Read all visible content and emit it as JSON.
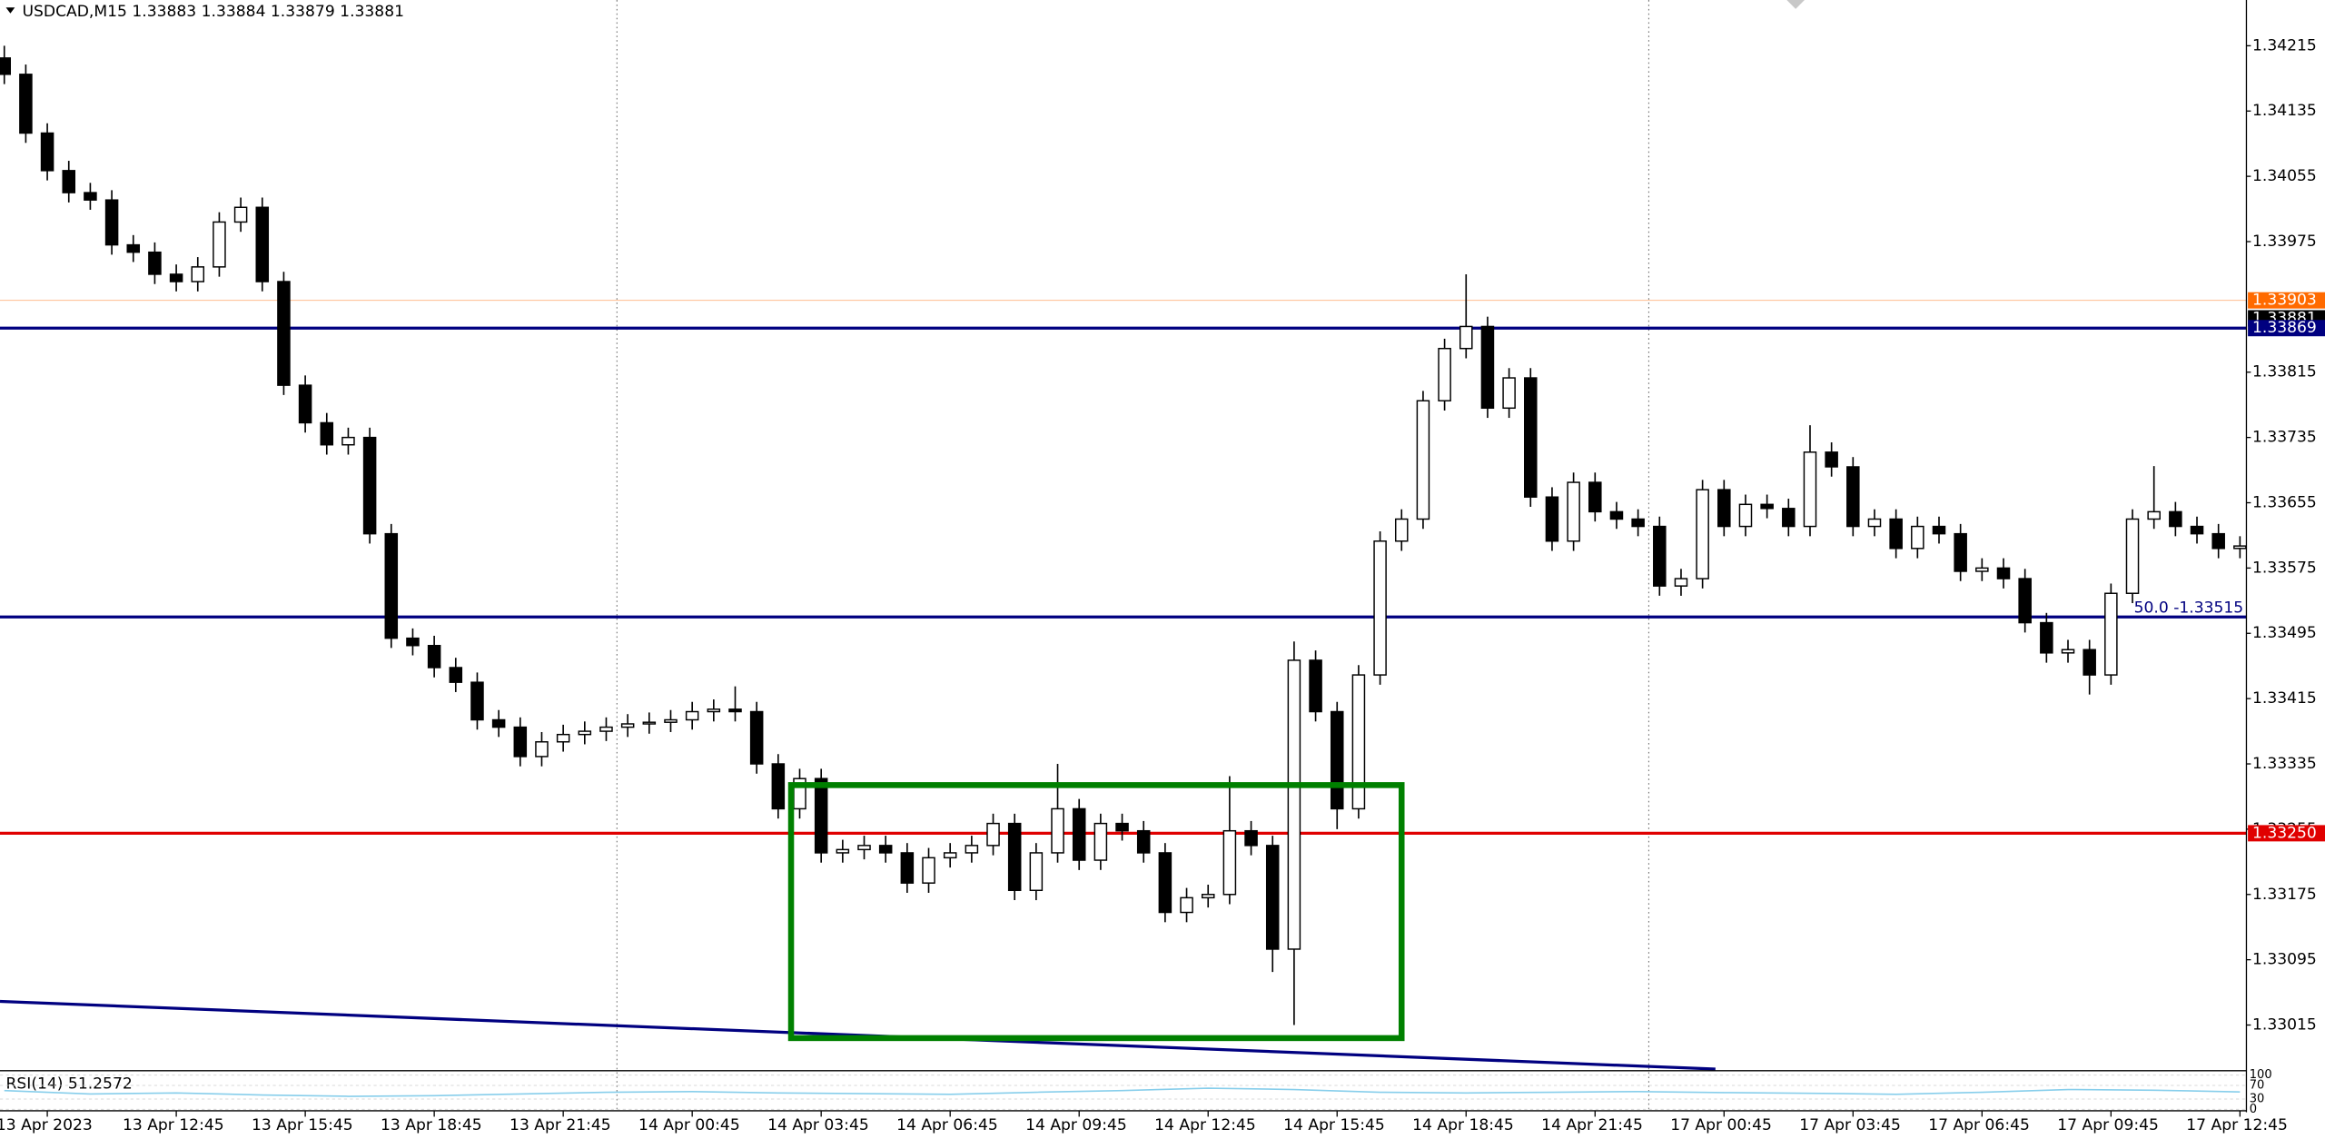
{
  "chart_data": {
    "type": "candlestick",
    "header": "USDCAD,M15  1.33883 1.33884 1.33879 1.33881",
    "up_color": "#ffffff",
    "down_color": "#000000",
    "edge_color": "#000000",
    "open": [
      1.342,
      1.3418,
      1.34108,
      1.34062,
      1.34035,
      1.34026,
      1.33971,
      1.33962,
      1.33935,
      1.33926,
      1.33944,
      1.33999,
      1.34017,
      1.33926,
      1.33799,
      1.33753,
      1.33726,
      1.33735,
      1.33617,
      1.33489,
      1.3348,
      1.33453,
      1.33435,
      1.33389,
      1.3338,
      1.33344,
      1.33362,
      1.33371,
      1.33375,
      1.3338,
      1.33384,
      1.33386,
      1.33389,
      1.33399,
      1.33402,
      1.33399,
      1.33335,
      1.3328,
      1.33317,
      1.33226,
      1.3323,
      1.33235,
      1.33226,
      1.33189,
      1.3322,
      1.33226,
      1.33235,
      1.33262,
      1.3318,
      1.33226,
      1.3328,
      1.33217,
      1.33262,
      1.33253,
      1.33226,
      1.33153,
      1.33171,
      1.33175,
      1.33253,
      1.33235,
      1.33108,
      1.33462,
      1.33399,
      1.3328,
      1.33444,
      1.33608,
      1.33635,
      1.3378,
      1.33844,
      1.33871,
      1.33771,
      1.33808,
      1.33662,
      1.33608,
      1.3368,
      1.33644,
      1.33635,
      1.33626,
      1.33553,
      1.33562,
      1.33671,
      1.33626,
      1.33653,
      1.33648,
      1.33626,
      1.33717,
      1.33699,
      1.33626,
      1.33635,
      1.33599,
      1.33626,
      1.33617,
      1.33571,
      1.33575,
      1.33562,
      1.33508,
      1.33471,
      1.33475,
      1.33444,
      1.33544,
      1.33635,
      1.33644,
      1.33626,
      1.33617,
      1.33599
    ],
    "high": [
      1.34215,
      1.34192,
      1.3412,
      1.34074,
      1.34047,
      1.34038,
      1.33983,
      1.33974,
      1.33947,
      1.33956,
      1.34011,
      1.34029,
      1.34029,
      1.33938,
      1.33811,
      1.33765,
      1.33747,
      1.33747,
      1.33629,
      1.33501,
      1.33492,
      1.33465,
      1.33447,
      1.33401,
      1.33392,
      1.33374,
      1.33383,
      1.33387,
      1.33392,
      1.33396,
      1.33398,
      1.33401,
      1.33411,
      1.33414,
      1.3343,
      1.33411,
      1.33347,
      1.33329,
      1.33329,
      1.33242,
      1.33247,
      1.33247,
      1.33238,
      1.33232,
      1.33238,
      1.33247,
      1.33274,
      1.33274,
      1.33238,
      1.33335,
      1.33292,
      1.33274,
      1.33274,
      1.33265,
      1.33238,
      1.33183,
      1.33187,
      1.3332,
      1.33265,
      1.33247,
      1.33485,
      1.33474,
      1.33411,
      1.33456,
      1.3362,
      1.33647,
      1.33792,
      1.33856,
      1.33935,
      1.33883,
      1.3382,
      1.3382,
      1.33674,
      1.33692,
      1.33692,
      1.33656,
      1.33647,
      1.33638,
      1.33574,
      1.33683,
      1.33683,
      1.33665,
      1.33665,
      1.3366,
      1.3375,
      1.33729,
      1.33711,
      1.33647,
      1.33647,
      1.33638,
      1.33638,
      1.33629,
      1.33587,
      1.33587,
      1.33574,
      1.3352,
      1.33487,
      1.33487,
      1.33556,
      1.33647,
      1.337,
      1.33656,
      1.33638,
      1.33629,
      1.33614
    ],
    "low": [
      1.34168,
      1.34096,
      1.3405,
      1.34023,
      1.34014,
      1.33959,
      1.3395,
      1.33923,
      1.33914,
      1.33914,
      1.33932,
      1.33987,
      1.33914,
      1.33787,
      1.33741,
      1.33714,
      1.33714,
      1.33605,
      1.33477,
      1.33468,
      1.33441,
      1.33423,
      1.33377,
      1.33368,
      1.33332,
      1.33332,
      1.3335,
      1.33359,
      1.33363,
      1.33368,
      1.33372,
      1.33374,
      1.33377,
      1.33387,
      1.33387,
      1.33323,
      1.33268,
      1.33268,
      1.33214,
      1.33214,
      1.33218,
      1.33214,
      1.33177,
      1.33177,
      1.33208,
      1.33214,
      1.33223,
      1.33168,
      1.33168,
      1.33214,
      1.33205,
      1.33205,
      1.33241,
      1.33214,
      1.33141,
      1.33141,
      1.33159,
      1.33163,
      1.33223,
      1.3308,
      1.33015,
      1.33387,
      1.33255,
      1.33268,
      1.33432,
      1.33596,
      1.33623,
      1.33768,
      1.33832,
      1.33759,
      1.33759,
      1.3365,
      1.33596,
      1.33596,
      1.33632,
      1.33623,
      1.33614,
      1.33541,
      1.33541,
      1.3355,
      1.33614,
      1.33614,
      1.33636,
      1.33614,
      1.33614,
      1.33687,
      1.33614,
      1.33614,
      1.33587,
      1.33587,
      1.33605,
      1.33559,
      1.33559,
      1.3355,
      1.33496,
      1.33459,
      1.33459,
      1.3342,
      1.33432,
      1.33532,
      1.33623,
      1.33614,
      1.33605,
      1.33587,
      1.33587
    ],
    "close": [
      1.3418,
      1.34108,
      1.34062,
      1.34035,
      1.34026,
      1.33971,
      1.33962,
      1.33935,
      1.33926,
      1.33944,
      1.33999,
      1.34017,
      1.33926,
      1.33799,
      1.33753,
      1.33726,
      1.33735,
      1.33617,
      1.33489,
      1.3348,
      1.33453,
      1.33435,
      1.33389,
      1.3338,
      1.33344,
      1.33362,
      1.33371,
      1.33375,
      1.3338,
      1.33384,
      1.33386,
      1.33389,
      1.33399,
      1.33402,
      1.33399,
      1.33335,
      1.3328,
      1.33317,
      1.33226,
      1.3323,
      1.33235,
      1.33226,
      1.33189,
      1.3322,
      1.33226,
      1.33235,
      1.33262,
      1.3318,
      1.33226,
      1.3328,
      1.33217,
      1.33262,
      1.33253,
      1.33226,
      1.33153,
      1.33171,
      1.33175,
      1.33253,
      1.33235,
      1.33108,
      1.33462,
      1.33399,
      1.3328,
      1.33444,
      1.33608,
      1.33635,
      1.3378,
      1.33844,
      1.33871,
      1.33771,
      1.33808,
      1.33662,
      1.33608,
      1.3368,
      1.33644,
      1.33635,
      1.33626,
      1.33553,
      1.33562,
      1.33671,
      1.33626,
      1.33653,
      1.33648,
      1.33626,
      1.33717,
      1.33699,
      1.33626,
      1.33635,
      1.33599,
      1.33626,
      1.33617,
      1.33571,
      1.33575,
      1.33562,
      1.33508,
      1.33471,
      1.33475,
      1.33444,
      1.33544,
      1.33635,
      1.33644,
      1.33626,
      1.33617,
      1.33599,
      1.33602
    ],
    "ylim": [
      1.32959,
      1.34271
    ],
    "yticks": [
      1.34215,
      1.34135,
      1.34055,
      1.33975,
      1.33815,
      1.33735,
      1.33655,
      1.33575,
      1.33495,
      1.33415,
      1.33335,
      1.33255,
      1.33175,
      1.33095,
      1.33015
    ],
    "xlim": [
      -0.2,
      104.3
    ],
    "xticks": [
      {
        "value": 2,
        "label": "13 Apr 2023"
      },
      {
        "value": 8,
        "label": "13 Apr 12:45"
      },
      {
        "value": 14,
        "label": "13 Apr 15:45"
      },
      {
        "value": 20,
        "label": "13 Apr 18:45"
      },
      {
        "value": 26,
        "label": "13 Apr 21:45"
      },
      {
        "value": 32,
        "label": "14 Apr 00:45"
      },
      {
        "value": 38,
        "label": "14 Apr 03:45"
      },
      {
        "value": 44,
        "label": "14 Apr 06:45"
      },
      {
        "value": 50,
        "label": "14 Apr 09:45"
      },
      {
        "value": 56,
        "label": "14 Apr 12:45"
      },
      {
        "value": 62,
        "label": "14 Apr 15:45"
      },
      {
        "value": 68,
        "label": "14 Apr 18:45"
      },
      {
        "value": 74,
        "label": "14 Apr 21:45"
      },
      {
        "value": 80,
        "label": "17 Apr 00:45"
      },
      {
        "value": 86,
        "label": "17 Apr 03:45"
      },
      {
        "value": 92,
        "label": "17 Apr 06:45"
      },
      {
        "value": 98,
        "label": "17 Apr 09:45"
      },
      {
        "value": 104,
        "label": "17 Apr 12:45"
      }
    ],
    "separators": [
      28.5,
      76.5
    ],
    "levels": [
      {
        "value": 1.33903,
        "label": "1.33903",
        "color": "#ff6a00",
        "line": "thin"
      },
      {
        "value": 1.33881,
        "label": "1.33881",
        "color": "#000000",
        "line": "none"
      },
      {
        "value": 1.33869,
        "label": "1.33869",
        "color": "#000080",
        "line": "solid"
      },
      {
        "value": 1.3325,
        "label": "1.33250",
        "color": "#e00000",
        "line": "solid"
      }
    ],
    "fibo": {
      "value": 1.33515,
      "label": "50.0 -1.33515",
      "color": "#000080"
    },
    "rectangle": {
      "x0": 36.6,
      "x1": 65,
      "y0": 1.32999,
      "y1": 1.33309,
      "color": "#008000"
    },
    "trendline": {
      "x0": -0.2,
      "y0": 1.33044,
      "x1": 79.6,
      "y1": 1.32961,
      "color": "#000080"
    },
    "rsi": {
      "label": "RSI(14) 51.2572",
      "color": "#87ceeb",
      "ylim": [
        0,
        100
      ],
      "yticks": [
        100,
        70,
        30,
        0
      ],
      "step": 4,
      "values": [
        55,
        45,
        48,
        42,
        38,
        40,
        45,
        50,
        52,
        48,
        46,
        44,
        50,
        55,
        62,
        58,
        50,
        48,
        50,
        52,
        49,
        47,
        44,
        50,
        58,
        56,
        51
      ]
    }
  }
}
